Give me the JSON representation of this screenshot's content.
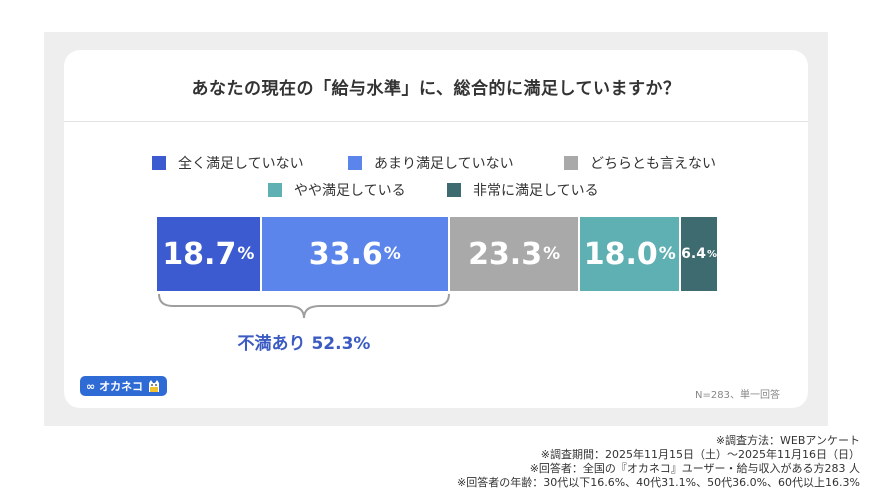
{
  "chart_data": {
    "type": "bar",
    "stacked": true,
    "orientation": "horizontal",
    "title": "あなたの現在の「給与水準」に、総合的に満足していますか？",
    "unit": "%",
    "series": [
      {
        "name": "全く満足していない",
        "value": 18.7,
        "value_label": "18.7",
        "color": "#3d5bd0"
      },
      {
        "name": "あまり満足していない",
        "value": 33.6,
        "value_label": "33.6",
        "color": "#5b85eb"
      },
      {
        "name": "どちらとも言えない",
        "value": 23.3,
        "value_label": "23.3",
        "color": "#a9a9a9"
      },
      {
        "name": "やや満足している",
        "value": 18.0,
        "value_label": "18.0",
        "color": "#5fb0b3"
      },
      {
        "name": "非常に満足している",
        "value": 6.4,
        "value_label": "6.4",
        "color": "#3e6b6f"
      }
    ],
    "annotation": "不満あり 52.3%",
    "annotation_color": "#3b5bc2"
  },
  "logo_text": "オカネコ",
  "sample_note": "N=283、単一回答",
  "footnotes": [
    "※調査方法：WEBアンケート",
    "※調査期間：2025年11月15日（土）〜2025年11月16日（日）",
    "※回答者：全国の『オカネコ』ユーザー・給与収入がある方283 人",
    "※回答者の年齢：30代以下16.6%、40代31.1%、50代36.0%、60代以上16.3%"
  ]
}
